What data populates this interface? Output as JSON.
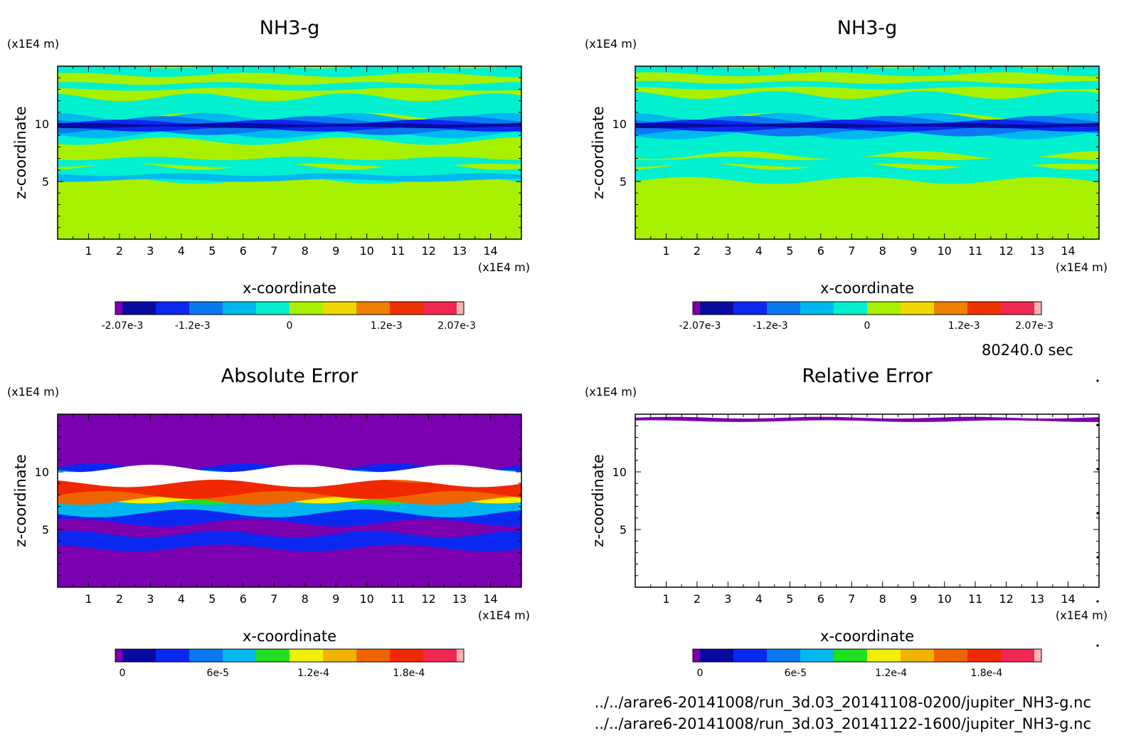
{
  "figure": {
    "time_label": "80240.0 sec",
    "file_lines": [
      "../../arare6-20141008/run_3d.03_20141108-0200/jupiter_NH3-g.nc",
      "../../arare6-20141008/run_3d.03_20141122-1600/jupiter_NH3-g.nc"
    ],
    "scatter_dots": 7
  },
  "chart_data": [
    {
      "type": "heatmap",
      "title": "NH3-g",
      "xlabel": "x-coordinate",
      "ylabel": "z-coordinate",
      "x_unit": "(x1E4 m)",
      "z_unit": "(x1E4 m)",
      "xlim": [
        0,
        15
      ],
      "zlim": [
        0,
        15
      ],
      "x_ticks": [
        1,
        2,
        3,
        4,
        5,
        6,
        7,
        8,
        9,
        10,
        11,
        12,
        13,
        14
      ],
      "z_ticks": [
        5,
        10
      ],
      "background_color": "#a8f000",
      "colorbar": {
        "colors": [
          "#7b00b0",
          "#0a0aa0",
          "#0a28f0",
          "#0a78f0",
          "#00b8f0",
          "#00f0d0",
          "#a8f000",
          "#f0d800",
          "#f08000",
          "#f03200",
          "#f02850",
          "#f8b4b4"
        ],
        "tick_labels": [
          "-2.07e-3",
          "-1.2e-3",
          "0",
          "1.2e-3",
          "2.07e-3"
        ],
        "tick_values": [
          -0.00207,
          -0.0012,
          0,
          0.0012,
          0.00207
        ],
        "range": [
          -0.00207,
          0.00207
        ]
      },
      "regions": [
        {
          "color": "#00f0d0",
          "bands": [
            [
              15,
              14.25
            ],
            [
              13.5,
              13.0
            ],
            [
              12.3,
              10.6
            ],
            [
              9.8,
              8.5
            ],
            [
              7.0,
              6.4
            ],
            [
              6.3,
              5.1
            ]
          ]
        },
        {
          "color": "#00b8f0",
          "bands": [
            [
              10.6,
              9.1
            ],
            [
              5.6,
              5.1
            ]
          ]
        },
        {
          "color": "#0a78f0",
          "bands": [
            [
              10.4,
              9.3
            ]
          ]
        },
        {
          "color": "#0a28f0",
          "bands": [
            [
              10.2,
              9.5
            ]
          ]
        },
        {
          "color": "#0a0aa0",
          "bands": [
            [
              10.0,
              9.7
            ]
          ]
        }
      ]
    },
    {
      "type": "heatmap",
      "title": "NH3-g",
      "xlabel": "x-coordinate",
      "ylabel": "z-coordinate",
      "x_unit": "(x1E4 m)",
      "z_unit": "(x1E4 m)",
      "xlim": [
        0,
        15
      ],
      "zlim": [
        0,
        15
      ],
      "x_ticks": [
        1,
        2,
        3,
        4,
        5,
        6,
        7,
        8,
        9,
        10,
        11,
        12,
        13,
        14
      ],
      "z_ticks": [
        5,
        10
      ],
      "background_color": "#a8f000",
      "colorbar": {
        "colors": [
          "#7b00b0",
          "#0a0aa0",
          "#0a28f0",
          "#0a78f0",
          "#00b8f0",
          "#00f0d0",
          "#a8f000",
          "#f0d800",
          "#f08000",
          "#f03200",
          "#f02850",
          "#f8b4b4"
        ],
        "tick_labels": [
          "-2.07e-3",
          "-1.2e-3",
          "0",
          "1.2e-3",
          "2.07e-3"
        ],
        "tick_values": [
          -0.00207,
          -0.0012,
          0,
          0.0012,
          0.00207
        ],
        "range": [
          -0.00207,
          0.00207
        ]
      },
      "regions": [
        {
          "color": "#00f0d0",
          "bands": [
            [
              15,
              14.3
            ],
            [
              13.6,
              13.1
            ],
            [
              12.5,
              10.6
            ],
            [
              9.8,
              7.3
            ],
            [
              7.0,
              6.4
            ],
            [
              6.3,
              5.1
            ]
          ]
        },
        {
          "color": "#00b8f0",
          "bands": [
            [
              10.6,
              9.0
            ]
          ]
        },
        {
          "color": "#0a78f0",
          "bands": [
            [
              10.4,
              9.2
            ]
          ]
        },
        {
          "color": "#0a28f0",
          "bands": [
            [
              10.2,
              9.5
            ]
          ]
        },
        {
          "color": "#0a0aa0",
          "bands": [
            [
              10.0,
              9.7
            ]
          ]
        }
      ]
    },
    {
      "type": "heatmap",
      "title": "Absolute Error",
      "xlabel": "x-coordinate",
      "ylabel": "z-coordinate",
      "x_unit": "(x1E4 m)",
      "z_unit": "(x1E4 m)",
      "xlim": [
        0,
        15
      ],
      "zlim": [
        0,
        15
      ],
      "x_ticks": [
        1,
        2,
        3,
        4,
        5,
        6,
        7,
        8,
        9,
        10,
        11,
        12,
        13,
        14
      ],
      "z_ticks": [
        5,
        10
      ],
      "background_color": "#7b00b0",
      "colorbar": {
        "colors": [
          "#7b00b0",
          "#0a0aa0",
          "#0a28f0",
          "#0a78f0",
          "#00b8f0",
          "#20e020",
          "#f0f000",
          "#f0b400",
          "#f06400",
          "#f02800",
          "#f02850",
          "#f8b4b4"
        ],
        "tick_labels": [
          "0",
          "6e-5",
          "1.2e-4",
          "1.8e-4"
        ],
        "tick_values": [
          0,
          6e-05,
          0.00012,
          0.00018
        ],
        "range": [
          0,
          0.00021
        ]
      },
      "regions": [
        {
          "color": "#0a28f0",
          "bands": [
            [
              10.4,
              5.6
            ],
            [
              4.6,
              3.4
            ]
          ]
        },
        {
          "color": "#00b8f0",
          "bands": [
            [
              9.8,
              6.4
            ]
          ]
        },
        {
          "color": "#20e020",
          "bands": [
            [
              9.5,
              7.5
            ]
          ]
        },
        {
          "color": "#f0f000",
          "bands": [
            [
              9.3,
              7.6
            ]
          ]
        },
        {
          "color": "#f06400",
          "bands": [
            [
              9.6,
              7.5
            ]
          ]
        },
        {
          "color": "#f02800",
          "bands": [
            [
              9.4,
              8.0
            ]
          ]
        },
        {
          "color": "#ffffff",
          "bands": [
            [
              10.3,
              9.0
            ]
          ]
        }
      ]
    },
    {
      "type": "heatmap",
      "title": "Relative Error",
      "xlabel": "x-coordinate",
      "ylabel": "z-coordinate",
      "x_unit": "(x1E4 m)",
      "z_unit": "(x1E4 m)",
      "xlim": [
        0,
        15
      ],
      "zlim": [
        0,
        15
      ],
      "x_ticks": [
        1,
        2,
        3,
        4,
        5,
        6,
        7,
        8,
        9,
        10,
        11,
        12,
        13,
        14
      ],
      "z_ticks": [
        5,
        10
      ],
      "background_color": "#ffffff",
      "colorbar": {
        "colors": [
          "#7b00b0",
          "#0a0aa0",
          "#0a28f0",
          "#0a78f0",
          "#00b8f0",
          "#20e020",
          "#f0f000",
          "#f0b400",
          "#f06400",
          "#f02800",
          "#f02850",
          "#f8b4b4"
        ],
        "tick_labels": [
          "0",
          "6e-5",
          "1.2e-4",
          "1.8e-4"
        ],
        "tick_values": [
          0,
          6e-05,
          0.00012,
          0.00018
        ],
        "range": [
          0,
          0.00021
        ]
      },
      "regions": [
        {
          "color": "#7b00b0",
          "bands": [
            [
              14.7,
              14.4
            ]
          ]
        }
      ]
    }
  ]
}
